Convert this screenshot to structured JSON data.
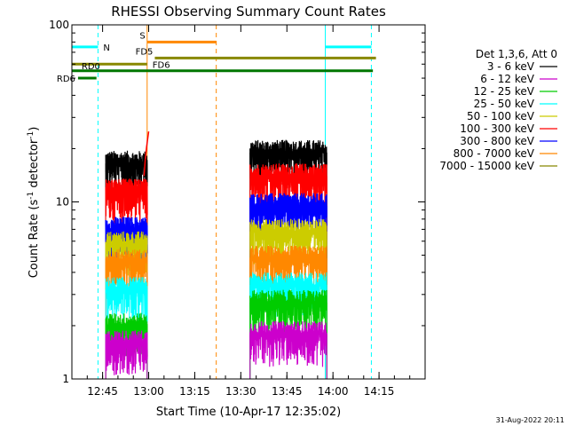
{
  "chart_data": {
    "type": "line",
    "title": "RHESSI Observing Summary Count Rates",
    "xlabel": "Start Time (10-Apr-17 12:35:02)",
    "ylabel": "Count Rate (s",
    "ylabel_sup": "-1",
    "ylabel_tail": " detector",
    "ylabel_sup2": "-1",
    "ylabel_close": ")",
    "y_scale": "log",
    "ylim": [
      1,
      100
    ],
    "xlim_minutes_after_1235": [
      0,
      115
    ],
    "x_ticks": [
      {
        "label": "12:45",
        "m": 10
      },
      {
        "label": "13:00",
        "m": 25
      },
      {
        "label": "13:15",
        "m": 40
      },
      {
        "label": "13:30",
        "m": 55
      },
      {
        "label": "13:45",
        "m": 70
      },
      {
        "label": "14:00",
        "m": 85
      },
      {
        "label": "14:15",
        "m": 100
      }
    ],
    "y_ticks": [
      {
        "label": "1",
        "v": 1
      },
      {
        "label": "10",
        "v": 10
      },
      {
        "label": "100",
        "v": 100
      }
    ],
    "legend": {
      "title": "Det 1,3,6, Att 0",
      "placement": "right",
      "entries": [
        {
          "label": "3 - 6 keV",
          "color": "#000000"
        },
        {
          "label": "6 - 12 keV",
          "color": "#cc00cc"
        },
        {
          "label": "12 - 25 keV",
          "color": "#00cc00"
        },
        {
          "label": "25 - 50 keV",
          "color": "#00ffff"
        },
        {
          "label": "50 - 100 keV",
          "color": "#cccc00"
        },
        {
          "label": "100 - 300 keV",
          "color": "#ff0000"
        },
        {
          "label": "300 - 800 keV",
          "color": "#0000ff"
        },
        {
          "label": "800 - 7000 keV",
          "color": "#ff8800"
        },
        {
          "label": "7000 - 15000 keV",
          "color": "#888800"
        }
      ]
    },
    "segments": [
      {
        "start_m": 11,
        "end_m": 24.5
      },
      {
        "start_m": 58,
        "end_m": 83
      }
    ],
    "series_levels": [
      {
        "name": "3 - 6 keV",
        "color": "#000000",
        "seg1": 16.5,
        "seg2": 19.0,
        "width": 1.2
      },
      {
        "name": "100 - 300 keV",
        "color": "#ff0000",
        "seg1": 11.5,
        "seg2": 14.0,
        "width": 1.3
      },
      {
        "name": "300 - 800 keV",
        "color": "#0000ff",
        "seg1": 7.0,
        "seg2": 9.5,
        "width": 1.4
      },
      {
        "name": "50 - 100 keV",
        "color": "#cccc00",
        "seg1": 5.8,
        "seg2": 6.8,
        "width": 1.0
      },
      {
        "name": "800 - 7000 keV",
        "color": "#ff8800",
        "seg1": 4.6,
        "seg2": 4.8,
        "width": 1.0
      },
      {
        "name": "25 - 50 keV",
        "color": "#00ffff",
        "seg1": 3.2,
        "seg2": 3.4,
        "width": 1.0
      },
      {
        "name": "12 - 25 keV",
        "color": "#00cc00",
        "seg1": 2.0,
        "seg2": 2.7,
        "width": 1.2
      },
      {
        "name": "6 - 12 keV",
        "color": "#cc00cc",
        "seg1": 1.6,
        "seg2": 1.8,
        "width": 1.2
      }
    ],
    "flags": [
      {
        "label": "N",
        "color": "#00ffff",
        "y": 75,
        "spans": [
          [
            0,
            8.5
          ],
          [
            82.5,
            97.5
          ]
        ]
      },
      {
        "label": "S",
        "color": "#ff8800",
        "y": 80,
        "spans": [
          [
            24.5,
            47
          ]
        ]
      },
      {
        "label": "FD5",
        "color": "#888800",
        "y": 65,
        "spans": [
          [
            27,
            99
          ]
        ]
      },
      {
        "label": "FD6",
        "color": "#888800",
        "y": 60,
        "spans": [
          [
            0,
            24.5
          ]
        ]
      },
      {
        "label": "RD0",
        "color": "#007700",
        "y": 55,
        "spans": [
          [
            0,
            98
          ]
        ]
      },
      {
        "label": "RD6",
        "color": "#007700",
        "y": 50,
        "spans": [
          [
            2,
            8
          ]
        ]
      }
    ],
    "vlines": [
      {
        "m": 0,
        "color": "#00ffff",
        "dash": false
      },
      {
        "m": 8.5,
        "color": "#00ffff",
        "dash": true
      },
      {
        "m": 24.5,
        "color": "#ff8800",
        "dash": false
      },
      {
        "m": 47,
        "color": "#ff8800",
        "dash": true
      },
      {
        "m": 82.5,
        "color": "#00ffff",
        "dash": false
      },
      {
        "m": 97.5,
        "color": "#00ffff",
        "dash": true
      }
    ],
    "flare_spike": {
      "color": "#ff0000",
      "start_m": 23.5,
      "end_m": 25,
      "from": 14,
      "to": 25
    }
  },
  "timestamp": "31-Aug-2022 20:11"
}
